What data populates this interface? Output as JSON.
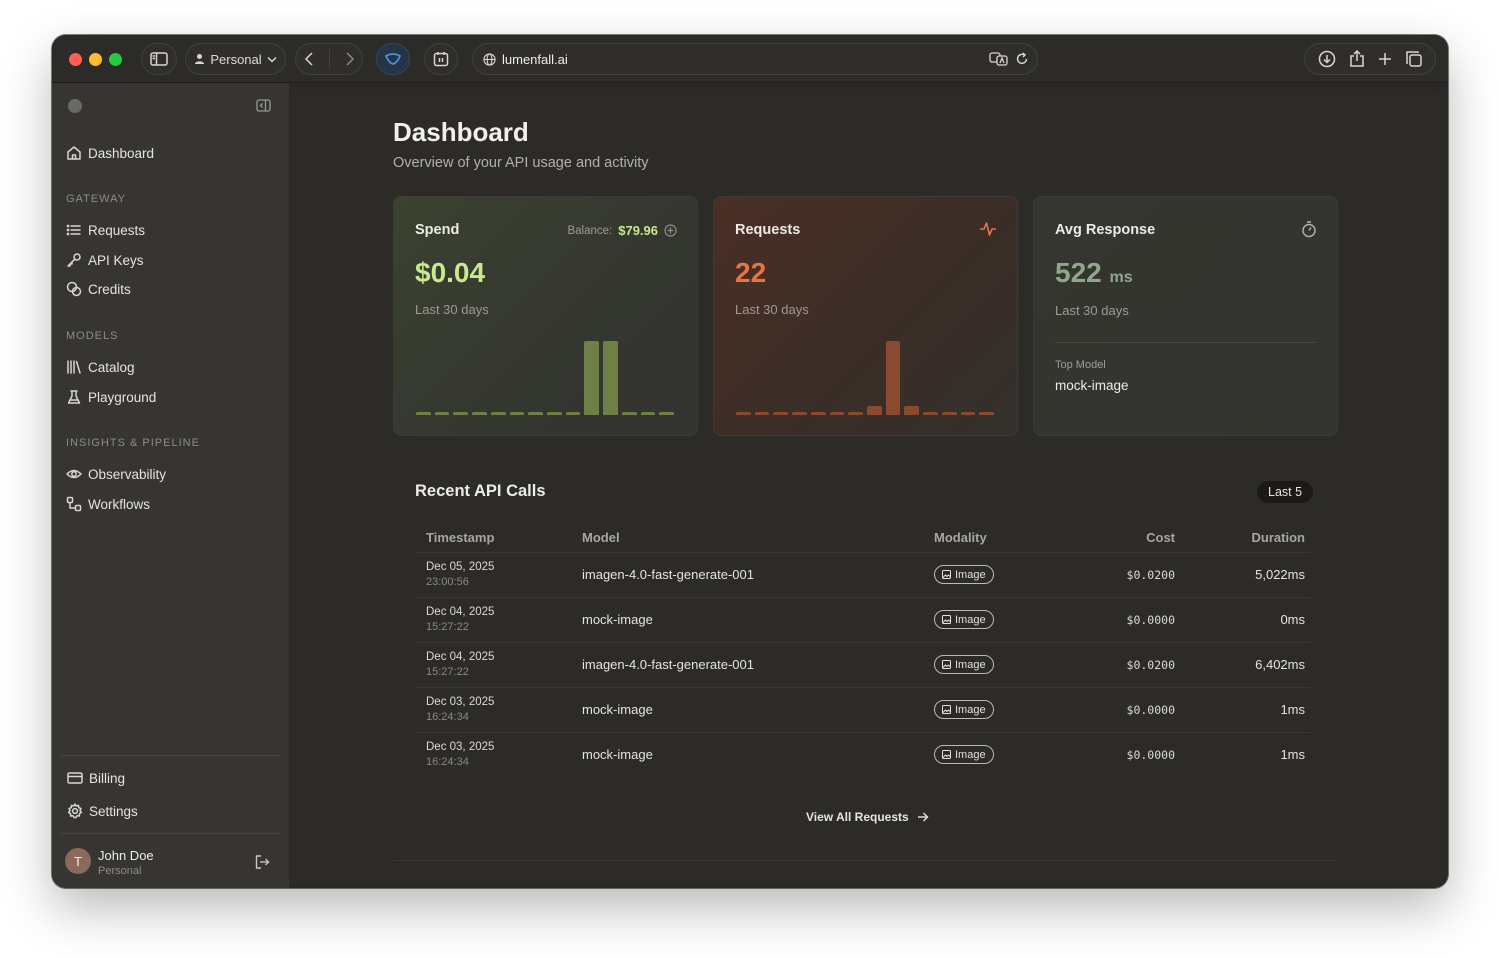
{
  "browser": {
    "profile_label": "Personal",
    "url": "lumenfall.ai"
  },
  "sidebar": {
    "top_item": "Dashboard",
    "sections": [
      {
        "title": "GATEWAY",
        "items": [
          "Requests",
          "API Keys",
          "Credits"
        ]
      },
      {
        "title": "MODELS",
        "items": [
          "Catalog",
          "Playground"
        ]
      },
      {
        "title": "INSIGHTS & PIPELINE",
        "items": [
          "Observability",
          "Workflows"
        ]
      }
    ],
    "bottom_items": [
      "Billing",
      "Settings"
    ],
    "user": {
      "initial": "T",
      "name": "John Doe",
      "workspace": "Personal"
    }
  },
  "page": {
    "title": "Dashboard",
    "subtitle": "Overview of your API usage and activity"
  },
  "cards": {
    "spend": {
      "title": "Spend",
      "balance_label": "Balance:",
      "balance_value": "$79.96",
      "value": "$0.04",
      "period": "Last 30 days",
      "accent": "#c8e98e",
      "bar_color": "#6e8046",
      "bars": [
        0.04,
        0.04,
        0.04,
        0.04,
        0.04,
        0.04,
        0.04,
        0.04,
        0.04,
        1,
        1,
        0.04,
        0.04,
        0.04
      ]
    },
    "requests": {
      "title": "Requests",
      "value": "22",
      "period": "Last 30 days",
      "accent": "#e8743f",
      "bar_color": "#8a4a30",
      "bars": [
        0.04,
        0.04,
        0.04,
        0.04,
        0.04,
        0.04,
        0.04,
        0.12,
        1,
        0.12,
        0.04,
        0.04,
        0.04,
        0.04
      ]
    },
    "avg_response": {
      "title": "Avg Response",
      "value": "522",
      "unit": "ms",
      "period": "Last 30 days",
      "accent": "#8fa88a",
      "top_model_label": "Top Model",
      "top_model_value": "mock-image"
    }
  },
  "recent": {
    "title": "Recent API Calls",
    "badge": "Last 5",
    "columns": [
      "Timestamp",
      "Model",
      "Modality",
      "Cost",
      "Duration"
    ],
    "rows": [
      {
        "date": "Dec 05, 2025",
        "time": "23:00:56",
        "model": "imagen-4.0-fast-generate-001",
        "modality": "Image",
        "cost": "$0.0200",
        "duration": "5,022ms"
      },
      {
        "date": "Dec 04, 2025",
        "time": "15:27:22",
        "model": "mock-image",
        "modality": "Image",
        "cost": "$0.0000",
        "duration": "0ms"
      },
      {
        "date": "Dec 04, 2025",
        "time": "15:27:22",
        "model": "imagen-4.0-fast-generate-001",
        "modality": "Image",
        "cost": "$0.0200",
        "duration": "6,402ms"
      },
      {
        "date": "Dec 03, 2025",
        "time": "16:24:34",
        "model": "mock-image",
        "modality": "Image",
        "cost": "$0.0000",
        "duration": "1ms"
      },
      {
        "date": "Dec 03, 2025",
        "time": "16:24:34",
        "model": "mock-image",
        "modality": "Image",
        "cost": "$0.0000",
        "duration": "1ms"
      }
    ],
    "view_all": "View All Requests"
  }
}
